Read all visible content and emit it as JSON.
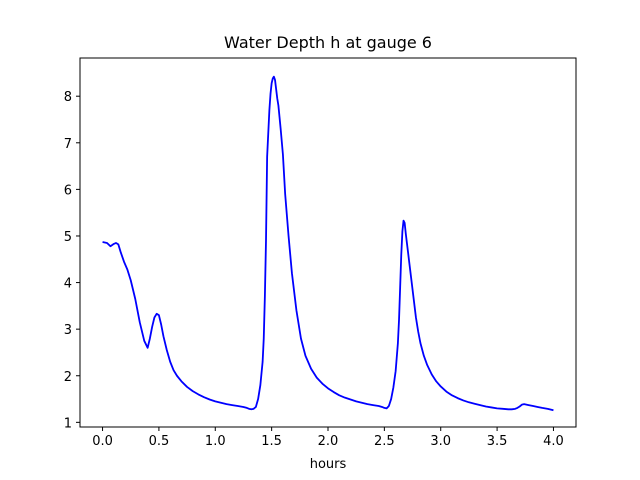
{
  "chart_data": {
    "type": "line",
    "title": "Water Depth h at gauge 6",
    "xlabel": "hours",
    "ylabel": "",
    "xlim": [
      -0.2,
      4.2
    ],
    "ylim": [
      0.9,
      8.82
    ],
    "xticks": [
      0.0,
      0.5,
      1.0,
      1.5,
      2.0,
      2.5,
      3.0,
      3.5,
      4.0
    ],
    "xtick_labels": [
      "0.0",
      "0.5",
      "1.0",
      "1.5",
      "2.0",
      "2.5",
      "3.0",
      "3.5",
      "4.0"
    ],
    "yticks": [
      1,
      2,
      3,
      4,
      5,
      6,
      7,
      8
    ],
    "ytick_labels": [
      "1",
      "2",
      "3",
      "4",
      "5",
      "6",
      "7",
      "8"
    ],
    "grid": false,
    "series": [
      {
        "color": "#0000ff",
        "x": [
          0.0,
          0.04,
          0.07,
          0.1,
          0.12,
          0.14,
          0.16,
          0.19,
          0.22,
          0.25,
          0.29,
          0.33,
          0.37,
          0.4,
          0.42,
          0.44,
          0.46,
          0.48,
          0.5,
          0.52,
          0.54,
          0.57,
          0.6,
          0.63,
          0.66,
          0.7,
          0.75,
          0.8,
          0.85,
          0.9,
          0.95,
          1.0,
          1.05,
          1.1,
          1.15,
          1.2,
          1.25,
          1.28,
          1.3,
          1.32,
          1.34,
          1.36,
          1.38,
          1.4,
          1.42,
          1.43,
          1.44,
          1.45,
          1.46,
          1.47,
          1.48,
          1.49,
          1.5,
          1.51,
          1.52,
          1.53,
          1.54,
          1.55,
          1.56,
          1.57,
          1.58,
          1.6,
          1.62,
          1.65,
          1.68,
          1.72,
          1.76,
          1.8,
          1.85,
          1.9,
          1.95,
          2.0,
          2.05,
          2.1,
          2.15,
          2.2,
          2.25,
          2.3,
          2.35,
          2.4,
          2.45,
          2.48,
          2.5,
          2.52,
          2.54,
          2.56,
          2.58,
          2.6,
          2.62,
          2.63,
          2.64,
          2.65,
          2.66,
          2.67,
          2.68,
          2.69,
          2.7,
          2.71,
          2.72,
          2.74,
          2.76,
          2.78,
          2.8,
          2.82,
          2.85,
          2.88,
          2.92,
          2.96,
          3.0,
          3.05,
          3.1,
          3.15,
          3.2,
          3.25,
          3.3,
          3.35,
          3.4,
          3.45,
          3.5,
          3.55,
          3.6,
          3.63,
          3.66,
          3.68,
          3.7,
          3.72,
          3.74,
          3.78,
          3.82,
          3.86,
          3.9,
          3.95,
          4.0
        ],
        "y": [
          4.87,
          4.85,
          4.78,
          4.83,
          4.85,
          4.82,
          4.66,
          4.45,
          4.28,
          4.05,
          3.65,
          3.15,
          2.75,
          2.6,
          2.8,
          3.05,
          3.25,
          3.33,
          3.3,
          3.1,
          2.85,
          2.55,
          2.3,
          2.12,
          2.0,
          1.88,
          1.76,
          1.67,
          1.6,
          1.54,
          1.49,
          1.45,
          1.42,
          1.39,
          1.37,
          1.35,
          1.33,
          1.31,
          1.29,
          1.28,
          1.29,
          1.33,
          1.5,
          1.8,
          2.3,
          2.8,
          3.7,
          4.9,
          6.7,
          7.2,
          7.7,
          8.05,
          8.28,
          8.38,
          8.42,
          8.35,
          8.15,
          7.95,
          7.8,
          7.55,
          7.3,
          6.75,
          5.9,
          5.0,
          4.2,
          3.4,
          2.8,
          2.43,
          2.15,
          1.96,
          1.83,
          1.73,
          1.65,
          1.58,
          1.53,
          1.49,
          1.45,
          1.42,
          1.39,
          1.37,
          1.35,
          1.33,
          1.31,
          1.3,
          1.35,
          1.5,
          1.75,
          2.1,
          2.7,
          3.2,
          3.9,
          4.6,
          5.1,
          5.33,
          5.28,
          5.05,
          4.85,
          4.65,
          4.45,
          4.05,
          3.65,
          3.25,
          2.95,
          2.7,
          2.43,
          2.23,
          2.03,
          1.88,
          1.77,
          1.66,
          1.58,
          1.52,
          1.47,
          1.43,
          1.4,
          1.37,
          1.34,
          1.32,
          1.3,
          1.29,
          1.28,
          1.28,
          1.29,
          1.31,
          1.34,
          1.38,
          1.39,
          1.37,
          1.35,
          1.33,
          1.31,
          1.29,
          1.26
        ]
      }
    ]
  }
}
